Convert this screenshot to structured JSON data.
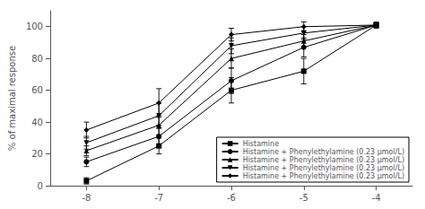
{
  "chart_data": {
    "type": "line",
    "x": [
      -8,
      -7,
      -6,
      -5,
      -4
    ],
    "series": [
      {
        "name": "Histamine",
        "color": "black",
        "marker": "square",
        "line_style": "solid",
        "values": [
          3,
          25,
          60,
          72,
          101
        ],
        "yerr": [
          2,
          5,
          8,
          8,
          2
        ]
      },
      {
        "name": "Histamine + Phenylethylamine (0.23 μmol/L)",
        "color": "black",
        "marker": "circle",
        "line_style": "solid",
        "values": [
          15,
          31,
          66,
          87,
          101
        ],
        "yerr": [
          3,
          7,
          8,
          6,
          1
        ]
      },
      {
        "name": "Histamine + Phenylethylamine (0.23 μmol/L)",
        "color": "black",
        "marker": "triangle-up",
        "line_style": "solid",
        "values": [
          22,
          38,
          80,
          91,
          101
        ],
        "yerr": [
          3,
          6,
          6,
          4,
          1
        ]
      },
      {
        "name": "Histamine + Phenylethylamine (0.23 μmol/L)",
        "color": "black",
        "marker": "triangle-down",
        "line_style": "solid",
        "values": [
          27,
          44,
          88,
          96,
          101
        ],
        "yerr": [
          4,
          8,
          5,
          4,
          1
        ]
      },
      {
        "name": "Histamine + Phenylethylamine (0.23 μmol/L)",
        "color": "black",
        "marker": "diamond",
        "line_style": "solid",
        "values": [
          35,
          52,
          95,
          100,
          101
        ],
        "yerr": [
          5,
          9,
          4,
          3,
          1
        ]
      }
    ],
    "ylabel": "% of maximal response",
    "xlim": [
      -8.5,
      -3.5
    ],
    "xticks": [
      -8,
      -7,
      -6,
      -5,
      -4
    ],
    "ylim": [
      0,
      110
    ],
    "yticks": [
      0,
      20,
      40,
      60,
      80,
      100
    ],
    "grid": false,
    "legend": "lower right"
  }
}
